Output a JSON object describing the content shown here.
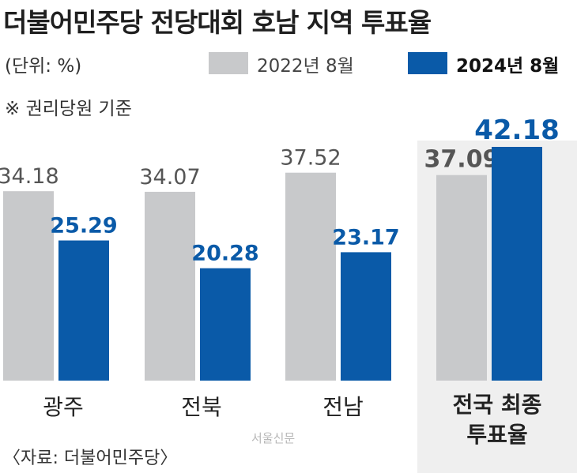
{
  "title": "더불어민주당 전당대회 호남 지역 투표율",
  "unit_note": "(단위: %)",
  "basis_note": "※ 권리당원 기준",
  "source": "〈자료: 더불어민주당〉",
  "watermark": "서울신문",
  "colors": {
    "series_2022": "#c8c9cb",
    "series_2024": "#0a5aa8",
    "value_2022": "#555555",
    "value_2024": "#0a5aa8",
    "panel_bg": "#efefef"
  },
  "chart_data": {
    "type": "bar",
    "categories": [
      "광주",
      "전북",
      "전남",
      "전국 최종 투표율"
    ],
    "series": [
      {
        "name": "2022년 8월",
        "values": [
          34.18,
          34.07,
          37.52,
          37.09
        ]
      },
      {
        "name": "2024년 8월",
        "values": [
          25.29,
          20.28,
          23.17,
          42.18
        ]
      }
    ],
    "value_labels": [
      [
        "34.18",
        "34.07",
        "37.52",
        "37.09"
      ],
      [
        "25.29",
        "20.28",
        "23.17",
        "42.18"
      ]
    ],
    "ylim": [
      0,
      42.18
    ],
    "grid": false,
    "legend": "top-right",
    "highlight_category": "전국 최종 투표율"
  },
  "labels": {
    "cat0": "광주",
    "cat1": "전북",
    "cat2": "전남",
    "cat3_line1": "전국 최종",
    "cat3_line2": "투표율",
    "legend1": "2022년 8월",
    "legend2": "2024년 8월"
  }
}
